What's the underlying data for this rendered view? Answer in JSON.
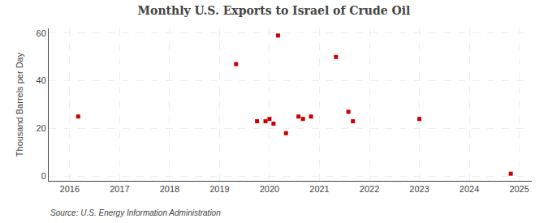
{
  "chart_data": {
    "type": "scatter",
    "title": "Monthly U.S. Exports to Israel of Crude Oil",
    "ylabel": "Thousand Barrels per Day",
    "annotations": [
      "Source: U.S. Energy Information Administration"
    ],
    "x": [
      2016.17,
      2019.33,
      2019.75,
      2019.92,
      2020.0,
      2020.08,
      2020.17,
      2020.33,
      2020.58,
      2020.67,
      2020.83,
      2021.33,
      2021.58,
      2021.67,
      2023.0,
      2024.83
    ],
    "values": [
      25,
      47,
      23,
      23,
      24,
      22,
      59,
      18,
      25,
      24,
      25,
      50,
      27,
      23,
      24,
      1
    ],
    "color": "#cc0000",
    "marker": "square",
    "xlim": [
      2015.58,
      2025.25
    ],
    "ylim": [
      -2,
      62
    ],
    "xticks": [
      2016,
      2017,
      2018,
      2019,
      2020,
      2021,
      2022,
      2023,
      2024,
      2025
    ],
    "yticks": [
      0,
      20,
      40,
      60
    ],
    "grid": true
  }
}
